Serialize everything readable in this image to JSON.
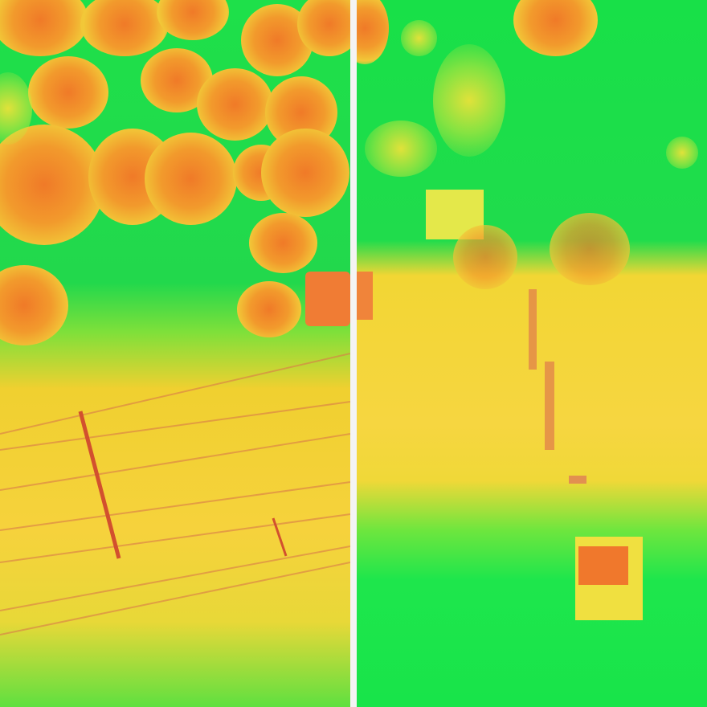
{
  "image": {
    "description_colors": {
      "background_green": "#1ee04a",
      "field_yellow": "#f6d23c",
      "flower_orange": "#f07a28",
      "divider": "#f4f4f4"
    },
    "panels": 2
  }
}
